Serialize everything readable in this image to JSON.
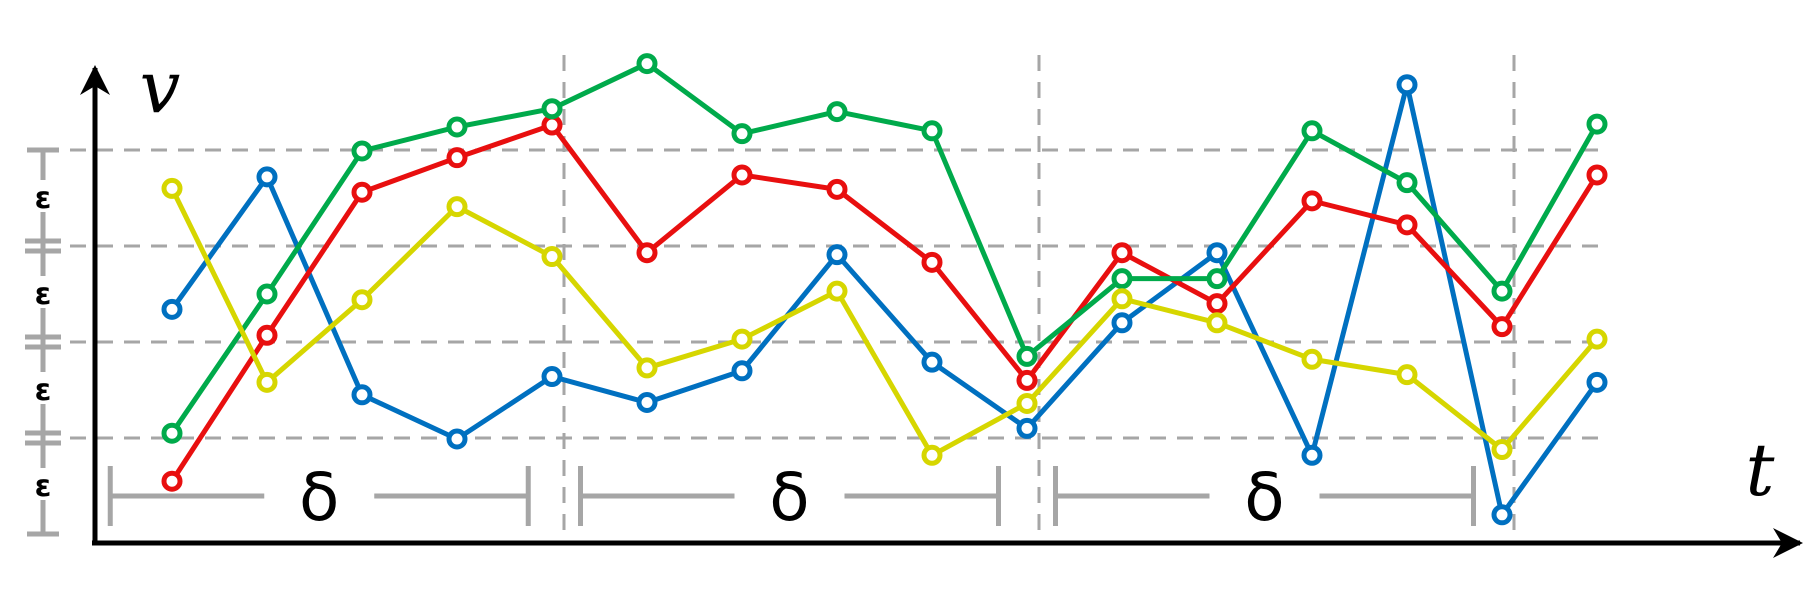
{
  "chart_data": {
    "type": "line",
    "xlabel": "t",
    "ylabel": "v",
    "grid": true,
    "legend": "none",
    "x": [
      0,
      1,
      2,
      3,
      4,
      5,
      6,
      7,
      8,
      9,
      10,
      11,
      12,
      13,
      14,
      15
    ],
    "xlim": [
      -0.8,
      17
    ],
    "ylim": [
      0,
      5
    ],
    "y_grid_values": [
      1,
      2,
      3,
      4
    ],
    "t_dividers": [
      4,
      9,
      14
    ],
    "epsilon_label": "ε",
    "epsilon_count": 4,
    "delta_label": "δ",
    "delta_intervals": [
      [
        -0.65,
        3.75
      ],
      [
        4.3,
        8.7
      ],
      [
        9.3,
        13.7
      ]
    ],
    "series": [
      {
        "color": "#0070c0",
        "values": [
          2.34,
          3.72,
          1.45,
          0.99,
          1.64,
          1.37,
          1.7,
          2.91,
          1.79,
          1.1,
          2.2,
          2.93,
          0.82,
          4.68,
          0.2,
          1.58
        ]
      },
      {
        "color": "#e80f0f",
        "values": [
          0.55,
          2.07,
          3.56,
          3.92,
          4.26,
          2.93,
          3.74,
          3.59,
          2.83,
          1.6,
          2.93,
          2.4,
          3.47,
          3.22,
          2.16,
          3.74
        ]
      },
      {
        "color": "#00aa4b",
        "values": [
          1.05,
          2.5,
          3.99,
          4.24,
          4.43,
          4.9,
          4.17,
          4.4,
          4.2,
          1.85,
          2.66,
          2.66,
          4.2,
          3.66,
          2.53,
          4.27
        ]
      },
      {
        "color": "#d6d600",
        "values": [
          3.6,
          1.58,
          2.44,
          3.41,
          2.89,
          1.73,
          2.03,
          2.53,
          0.82,
          1.36,
          2.45,
          2.2,
          1.82,
          1.66,
          0.88,
          2.03
        ]
      }
    ]
  }
}
